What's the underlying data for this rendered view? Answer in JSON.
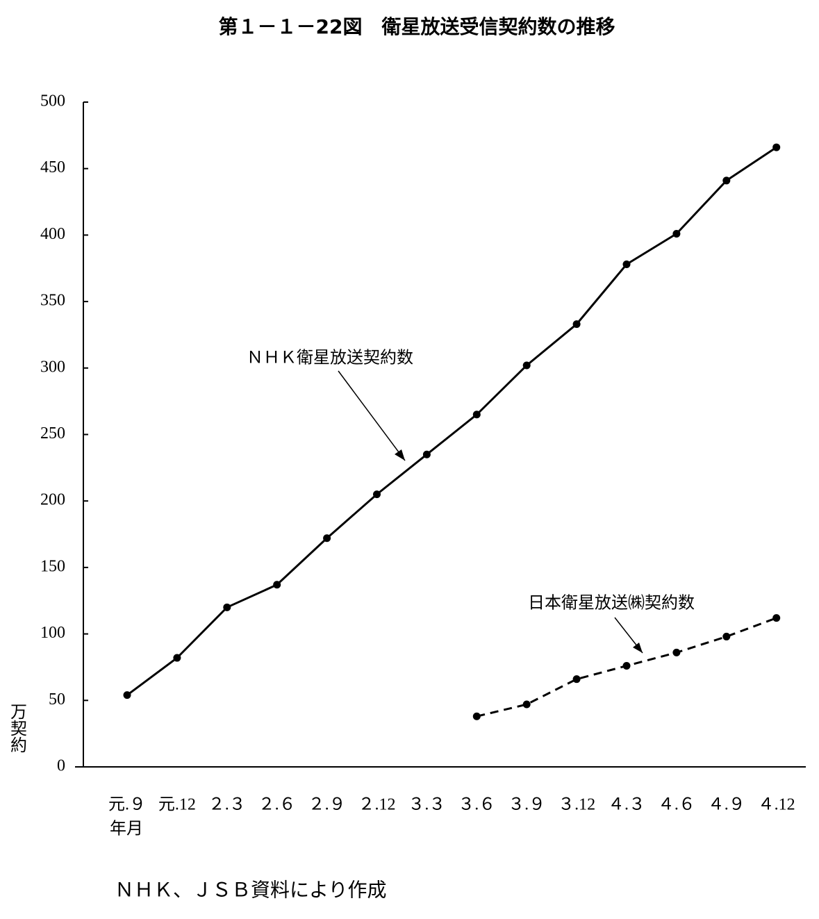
{
  "chart_data": {
    "type": "line",
    "title": "第１－１－22図　衛星放送受信契約数の推移",
    "y_label": "万契約",
    "x_label": "年月",
    "note": "ＮＨＫ、ＪＳＢ資料により作成",
    "categories": [
      "元.９",
      "元.12",
      "２.３",
      "２.６",
      "２.９",
      "２.12",
      "３.３",
      "３.６",
      "３.９",
      "３.12",
      "４.３",
      "４.６",
      "４.９",
      "４.12"
    ],
    "series": [
      {
        "name": "ＮＨＫ衛星放送契約数",
        "color": "#000000",
        "style": "solid",
        "values": [
          54,
          82,
          120,
          137,
          172,
          205,
          235,
          265,
          302,
          333,
          378,
          401,
          441,
          466
        ]
      },
      {
        "name": "日本衛星放送㈱契約数",
        "color": "#000000",
        "style": "dashed",
        "values": [
          null,
          null,
          null,
          null,
          null,
          null,
          null,
          38,
          47,
          66,
          76,
          86,
          98,
          112
        ]
      }
    ],
    "ylim": [
      0,
      500
    ],
    "yticks": [
      0,
      50,
      100,
      150,
      200,
      250,
      300,
      350,
      400,
      450,
      500
    ],
    "grid": false
  }
}
